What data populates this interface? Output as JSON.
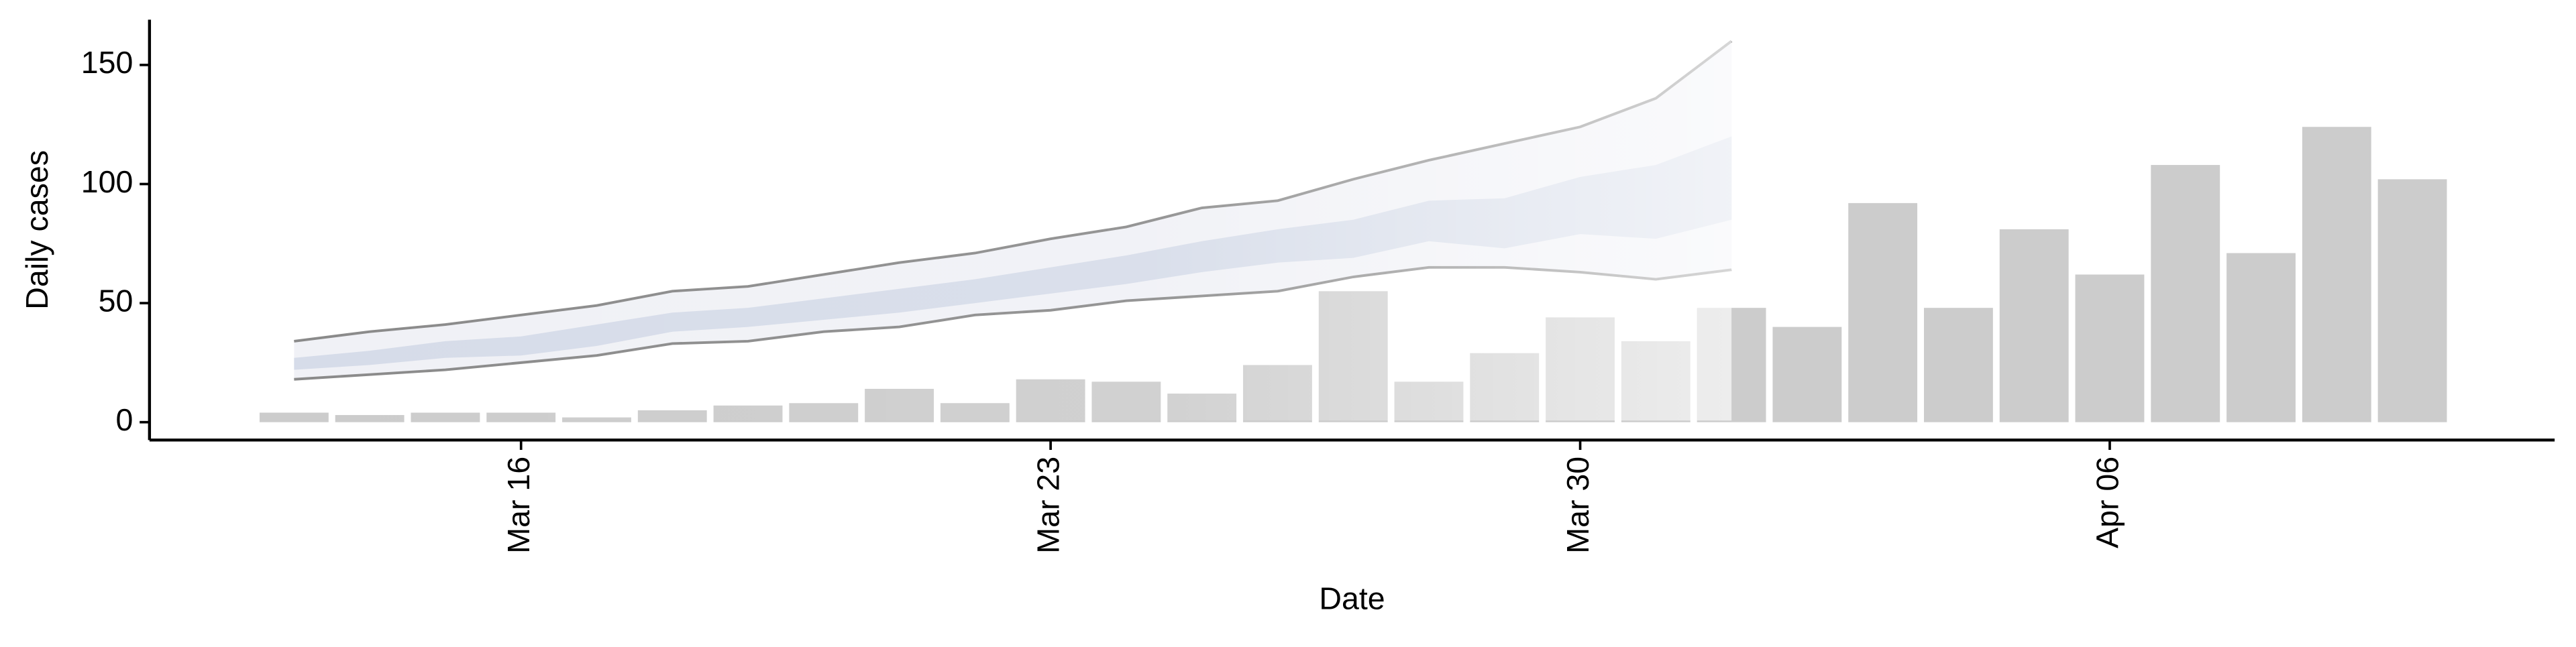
{
  "chart_data": {
    "type": "bar",
    "x_label": "Date",
    "y_label": "Daily cases",
    "categories": [
      "Mar 13",
      "Mar 14",
      "Mar 15",
      "Mar 16",
      "Mar 17",
      "Mar 18",
      "Mar 19",
      "Mar 20",
      "Mar 21",
      "Mar 22",
      "Mar 23",
      "Mar 24",
      "Mar 25",
      "Mar 26",
      "Mar 27",
      "Mar 28",
      "Mar 29",
      "Mar 30",
      "Mar 31",
      "Apr 01",
      "Apr 02",
      "Apr 03",
      "Apr 04",
      "Apr 05",
      "Apr 06",
      "Apr 07",
      "Apr 08",
      "Apr 09",
      "Apr 10"
    ],
    "values": [
      4,
      3,
      4,
      4,
      2,
      5,
      7,
      8,
      14,
      8,
      18,
      17,
      12,
      24,
      55,
      17,
      29,
      44,
      34,
      48,
      40,
      92,
      48,
      81,
      62,
      108,
      71,
      124,
      102
    ],
    "color": "#cccccc",
    "bands": [
      {
        "color": "#eef0f5",
        "line_color": "#8a8a8a",
        "lower": [
          18,
          20,
          22,
          25,
          28,
          33,
          34,
          38,
          40,
          45,
          47,
          51,
          53,
          55,
          61,
          65,
          65,
          63,
          60,
          64
        ],
        "upper": [
          34,
          38,
          41,
          45,
          49,
          55,
          57,
          62,
          67,
          71,
          77,
          82,
          90,
          93,
          102,
          110,
          117,
          124,
          136,
          160
        ]
      },
      {
        "color": "#d3d9e8",
        "lower": [
          22,
          24,
          27,
          28,
          32,
          38,
          40,
          43,
          46,
          50,
          54,
          58,
          63,
          67,
          69,
          76,
          73,
          79,
          77,
          85
        ],
        "upper": [
          27,
          30,
          34,
          36,
          41,
          46,
          48,
          52,
          56,
          60,
          65,
          70,
          76,
          81,
          85,
          93,
          94,
          103,
          108,
          120
        ]
      }
    ],
    "xticks": [
      "Mar 16",
      "Mar 23",
      "Mar 30",
      "Apr 06"
    ],
    "ylim": [
      -7.5,
      169
    ],
    "yticks": [
      0,
      50,
      100,
      150
    ]
  }
}
